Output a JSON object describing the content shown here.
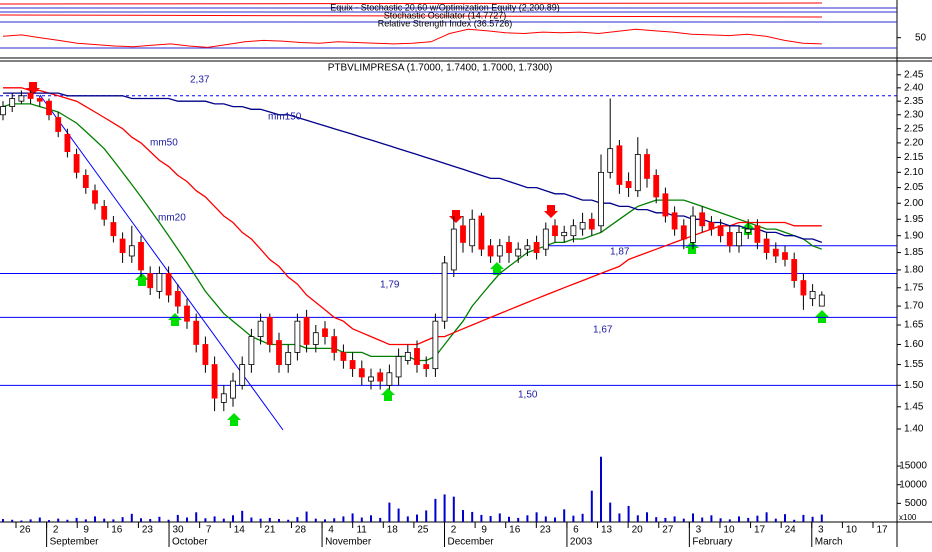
{
  "chart_data": {
    "type": "candlestick",
    "title": "PTBVLIMPRESA (1.7000, 1.7400, 1.7000, 1.7300)",
    "log_y": true,
    "ylim": [
      1.35,
      2.5
    ],
    "yticks": [
      2.45,
      {
        "value": 2.4,
        "label": "2.40"
      },
      2.35,
      {
        "value": 2.3,
        "label": "2.30"
      },
      2.25,
      {
        "value": 2.2,
        "label": "2.20"
      },
      2.15,
      {
        "value": 2.1,
        "label": "2.10"
      },
      2.05,
      {
        "value": 2.0,
        "label": "2.00"
      },
      1.95,
      {
        "value": 1.9,
        "label": "1.90"
      },
      1.85,
      {
        "value": 1.8,
        "label": "1.80"
      },
      1.75,
      {
        "value": 1.7,
        "label": "1.70"
      },
      1.65,
      {
        "value": 1.6,
        "label": "1.60"
      },
      1.55,
      {
        "value": 1.5,
        "label": "1.50"
      },
      1.45,
      {
        "value": 1.4,
        "label": "1.40"
      }
    ],
    "up_color": "#ffffff",
    "down_color": "#ff0000",
    "outline_color": "#000000",
    "ohlc": {
      "open": [
        2.3,
        2.33,
        2.35,
        2.38,
        2.36,
        2.35,
        2.29,
        2.23,
        2.16,
        2.09,
        2.04,
        1.99,
        1.94,
        1.89,
        1.84,
        1.88,
        1.79,
        1.74,
        1.79,
        1.74,
        1.7,
        1.66,
        1.6,
        1.55,
        1.46,
        1.47,
        1.5,
        1.55,
        1.62,
        1.67,
        1.61,
        1.55,
        1.58,
        1.67,
        1.6,
        1.64,
        1.62,
        1.58,
        1.56,
        1.54,
        1.51,
        1.53,
        1.5,
        1.52,
        1.56,
        1.59,
        1.55,
        1.54,
        1.66,
        1.8,
        1.93,
        1.87,
        1.96,
        1.87,
        1.84,
        1.88,
        1.84,
        1.86,
        1.88,
        1.86,
        1.93,
        1.9,
        1.9,
        1.92,
        1.95,
        1.93,
        2.1,
        2.19,
        2.07,
        2.04,
        2.16,
        2.09,
        2.03,
        1.97,
        1.93,
        1.88,
        1.97,
        1.94,
        1.93,
        1.91,
        1.87,
        1.91,
        1.93,
        1.89,
        1.86,
        1.85,
        1.83,
        1.77,
        1.72,
        1.7
      ],
      "high": [
        2.35,
        2.38,
        2.39,
        2.39,
        2.37,
        2.36,
        2.31,
        2.25,
        2.18,
        2.11,
        2.06,
        2.01,
        1.96,
        1.91,
        1.93,
        1.9,
        1.81,
        1.81,
        1.81,
        1.76,
        1.72,
        1.68,
        1.62,
        1.57,
        1.5,
        1.53,
        1.57,
        1.64,
        1.68,
        1.68,
        1.63,
        1.6,
        1.68,
        1.69,
        1.65,
        1.66,
        1.64,
        1.6,
        1.58,
        1.56,
        1.54,
        1.54,
        1.55,
        1.59,
        1.6,
        1.61,
        1.57,
        1.68,
        1.84,
        1.96,
        1.96,
        1.98,
        1.97,
        1.89,
        1.89,
        1.9,
        1.88,
        1.89,
        1.9,
        1.94,
        1.95,
        1.93,
        1.95,
        1.97,
        1.97,
        2.16,
        2.36,
        2.21,
        2.1,
        2.22,
        2.18,
        2.11,
        2.05,
        1.99,
        1.95,
        1.99,
        1.99,
        1.96,
        1.95,
        1.93,
        1.93,
        1.95,
        1.95,
        1.91,
        1.88,
        1.87,
        1.85,
        1.79,
        1.76,
        1.74
      ],
      "low": [
        2.28,
        2.31,
        2.34,
        2.34,
        2.33,
        2.28,
        2.22,
        2.15,
        2.08,
        2.03,
        1.98,
        1.93,
        1.88,
        1.82,
        1.82,
        1.78,
        1.73,
        1.72,
        1.71,
        1.68,
        1.64,
        1.58,
        1.53,
        1.44,
        1.44,
        1.45,
        1.49,
        1.53,
        1.6,
        1.58,
        1.53,
        1.53,
        1.56,
        1.58,
        1.58,
        1.6,
        1.56,
        1.54,
        1.52,
        1.5,
        1.49,
        1.49,
        1.49,
        1.5,
        1.55,
        1.53,
        1.52,
        1.52,
        1.64,
        1.78,
        1.85,
        1.85,
        1.84,
        1.82,
        1.82,
        1.82,
        1.82,
        1.84,
        1.83,
        1.84,
        1.88,
        1.88,
        1.88,
        1.9,
        1.9,
        1.91,
        2.08,
        2.03,
        2.02,
        2.02,
        2.05,
        2.0,
        1.94,
        1.9,
        1.86,
        1.86,
        1.91,
        1.9,
        1.88,
        1.85,
        1.85,
        1.89,
        1.86,
        1.83,
        1.82,
        1.81,
        1.75,
        1.69,
        1.7,
        1.7
      ],
      "close": [
        2.33,
        2.36,
        2.37,
        2.36,
        2.35,
        2.3,
        2.24,
        2.17,
        2.1,
        2.05,
        2.0,
        1.95,
        1.9,
        1.85,
        1.87,
        1.8,
        1.75,
        1.79,
        1.73,
        1.7,
        1.66,
        1.6,
        1.55,
        1.47,
        1.48,
        1.51,
        1.55,
        1.62,
        1.66,
        1.6,
        1.55,
        1.58,
        1.66,
        1.6,
        1.63,
        1.62,
        1.58,
        1.56,
        1.54,
        1.52,
        1.52,
        1.51,
        1.53,
        1.57,
        1.58,
        1.55,
        1.54,
        1.66,
        1.82,
        1.92,
        1.88,
        1.95,
        1.86,
        1.84,
        1.87,
        1.85,
        1.86,
        1.87,
        1.85,
        1.92,
        1.9,
        1.91,
        1.93,
        1.94,
        1.92,
        2.1,
        2.18,
        2.06,
        2.05,
        2.16,
        2.08,
        2.02,
        1.96,
        1.92,
        1.89,
        1.96,
        1.93,
        1.92,
        1.9,
        1.87,
        1.91,
        1.92,
        1.88,
        1.85,
        1.84,
        1.83,
        1.77,
        1.73,
        1.74,
        1.73
      ]
    },
    "series": [
      {
        "name": "mm20",
        "color": "#008000",
        "values": [
          2.33,
          2.34,
          2.34,
          2.34,
          2.33,
          2.32,
          2.31,
          2.29,
          2.27,
          2.24,
          2.21,
          2.18,
          2.14,
          2.1,
          2.06,
          2.02,
          1.98,
          1.94,
          1.9,
          1.86,
          1.82,
          1.78,
          1.74,
          1.71,
          1.68,
          1.66,
          1.64,
          1.62,
          1.61,
          1.6,
          1.6,
          1.6,
          1.6,
          1.59,
          1.59,
          1.59,
          1.59,
          1.58,
          1.58,
          1.58,
          1.57,
          1.57,
          1.57,
          1.57,
          1.57,
          1.56,
          1.56,
          1.57,
          1.6,
          1.63,
          1.66,
          1.7,
          1.73,
          1.76,
          1.79,
          1.81,
          1.83,
          1.85,
          1.86,
          1.87,
          1.88,
          1.88,
          1.89,
          1.89,
          1.9,
          1.91,
          1.93,
          1.95,
          1.97,
          1.99,
          2.0,
          2.01,
          2.01,
          2.01,
          2.01,
          2.0,
          1.99,
          1.98,
          1.97,
          1.96,
          1.95,
          1.94,
          1.93,
          1.92,
          1.92,
          1.91,
          1.9,
          1.89,
          1.87,
          1.86
        ]
      },
      {
        "name": "mm50",
        "color": "#ff0000",
        "values": [
          2.4,
          2.4,
          2.4,
          2.39,
          2.39,
          2.38,
          2.37,
          2.36,
          2.35,
          2.33,
          2.31,
          2.29,
          2.27,
          2.25,
          2.22,
          2.2,
          2.17,
          2.14,
          2.12,
          2.09,
          2.07,
          2.04,
          2.02,
          1.99,
          1.96,
          1.94,
          1.91,
          1.89,
          1.86,
          1.83,
          1.81,
          1.78,
          1.76,
          1.73,
          1.71,
          1.69,
          1.67,
          1.66,
          1.64,
          1.63,
          1.62,
          1.61,
          1.6,
          1.6,
          1.6,
          1.6,
          1.61,
          1.62,
          1.62,
          1.63,
          1.64,
          1.65,
          1.66,
          1.67,
          1.68,
          1.69,
          1.7,
          1.71,
          1.72,
          1.73,
          1.74,
          1.75,
          1.76,
          1.77,
          1.78,
          1.79,
          1.8,
          1.81,
          1.83,
          1.84,
          1.85,
          1.86,
          1.87,
          1.88,
          1.89,
          1.9,
          1.91,
          1.92,
          1.93,
          1.93,
          1.94,
          1.94,
          1.94,
          1.94,
          1.94,
          1.94,
          1.93,
          1.93,
          1.93,
          1.93
        ]
      },
      {
        "name": "mm150",
        "color": "#00008b",
        "values": [
          2.38,
          2.38,
          2.38,
          2.38,
          2.38,
          2.38,
          2.38,
          2.37,
          2.37,
          2.37,
          2.37,
          2.37,
          2.37,
          2.37,
          2.36,
          2.36,
          2.36,
          2.36,
          2.36,
          2.35,
          2.35,
          2.35,
          2.35,
          2.34,
          2.34,
          2.33,
          2.33,
          2.32,
          2.32,
          2.31,
          2.3,
          2.3,
          2.29,
          2.28,
          2.27,
          2.26,
          2.25,
          2.24,
          2.23,
          2.22,
          2.21,
          2.2,
          2.19,
          2.18,
          2.17,
          2.16,
          2.15,
          2.14,
          2.13,
          2.12,
          2.11,
          2.1,
          2.09,
          2.08,
          2.08,
          2.07,
          2.06,
          2.05,
          2.05,
          2.04,
          2.03,
          2.03,
          2.02,
          2.01,
          2.01,
          2.0,
          2.0,
          1.99,
          1.99,
          1.98,
          1.98,
          1.97,
          1.97,
          1.96,
          1.96,
          1.95,
          1.95,
          1.94,
          1.94,
          1.93,
          1.93,
          1.92,
          1.92,
          1.91,
          1.91,
          1.9,
          1.9,
          1.89,
          1.89,
          1.88
        ]
      }
    ],
    "levels": [
      {
        "value": 2.37,
        "label": "2,37",
        "color": "#0000ff",
        "dashed": true
      },
      {
        "value": 1.87,
        "label": "1,87",
        "color": "#0000ff",
        "dashed": false
      },
      {
        "value": 1.79,
        "label": "1,79",
        "color": "#0000ff",
        "dashed": false
      },
      {
        "value": 1.67,
        "label": "1,67",
        "color": "#0000ff",
        "dashed": false
      },
      {
        "value": 1.5,
        "label": "1,50",
        "color": "#0000ff",
        "dashed": false
      }
    ],
    "volume": {
      "color": "#0000cc",
      "unit": "x100",
      "ylim": [
        0,
        18500
      ],
      "yticks": [
        5000,
        10000,
        15000
      ],
      "values": [
        800,
        600,
        400,
        700,
        1200,
        500,
        900,
        600,
        1100,
        700,
        1500,
        900,
        700,
        1300,
        2200,
        1000,
        800,
        1400,
        600,
        1900,
        1200,
        2600,
        1000,
        1500,
        900,
        1800,
        3000,
        1200,
        900,
        1100,
        800,
        600,
        1300,
        2800,
        900,
        700,
        1000,
        1500,
        2300,
        1200,
        1800,
        1100,
        5200,
        3600,
        1500,
        2000,
        3100,
        6200,
        7400,
        6800,
        3200,
        2700,
        1900,
        1600,
        2300,
        1400,
        1100,
        1800,
        2600,
        1500,
        1200,
        3400,
        1700,
        2200,
        8400,
        17500,
        5200,
        2300,
        4300,
        1800,
        2600,
        1300,
        1100,
        1500,
        900,
        2300,
        1200,
        1800,
        1000,
        700,
        1500,
        1100,
        1700,
        2600,
        900,
        2100,
        600,
        1900,
        1400,
        2000
      ]
    },
    "indicator": {
      "labels": [
        "Equix - Stochastic 20,60 w/Optimization Equity (2,200.89)",
        "Stochastic Oscillator (14.7727)",
        "Relative Strength Index (36.5726)"
      ],
      "color": "#ff0000",
      "ylim": [
        25,
        100
      ],
      "yticks": [
        50
      ],
      "values": [
        52,
        54,
        50,
        46,
        42,
        40,
        38,
        37,
        39,
        41,
        38,
        36,
        40,
        44,
        46,
        45,
        43,
        42,
        44,
        43,
        42,
        41,
        42,
        44,
        56,
        62,
        60,
        57,
        56,
        58,
        57,
        58,
        56,
        59,
        62,
        60,
        58,
        55,
        54,
        53,
        55,
        52,
        46,
        42,
        41
      ]
    },
    "x_tick_labels": [
      "26",
      "2",
      "9",
      "16",
      "23",
      "30",
      "7",
      "14",
      "21",
      "28",
      "4",
      "11",
      "18",
      "25",
      "2",
      "9",
      "16",
      "23",
      "6",
      "13",
      "20",
      "27",
      "3",
      "10",
      "17",
      "24",
      "3",
      "10",
      "17"
    ],
    "x_month_labels": [
      null,
      "September",
      null,
      null,
      null,
      "October",
      null,
      null,
      null,
      null,
      "November",
      null,
      null,
      null,
      "December",
      null,
      null,
      null,
      "2003",
      null,
      null,
      null,
      "February",
      null,
      null,
      null,
      "March",
      null,
      null
    ]
  }
}
